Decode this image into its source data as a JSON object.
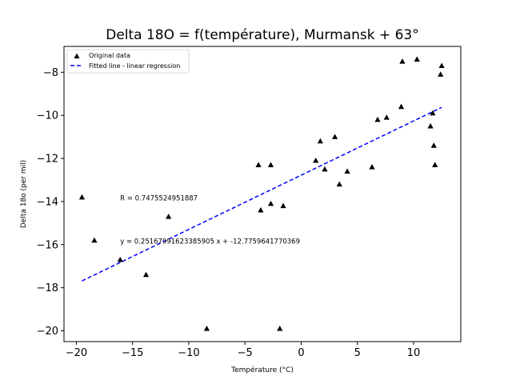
{
  "chart_data": {
    "type": "scatter",
    "title": "Delta 18O = f(température), Murmansk + 63°",
    "xlabel": "Température (°C)",
    "ylabel": "Delta 18o (per mil)",
    "xlim": [
      -21.1,
      14.2
    ],
    "ylim": [
      -20.5,
      -6.8
    ],
    "x_ticks": [
      -20,
      -15,
      -10,
      -5,
      0,
      5,
      10
    ],
    "y_ticks": [
      -20,
      -18,
      -16,
      -14,
      -12,
      -10,
      -8
    ],
    "x_tick_labels": [
      "−20",
      "−15",
      "−10",
      "−5",
      "0",
      "5",
      "10"
    ],
    "y_tick_labels": [
      "−20",
      "−18",
      "−16",
      "−14",
      "−12",
      "−10",
      "−8"
    ],
    "grid": false,
    "legend_position": "top-left",
    "series": [
      {
        "name": "Original data",
        "marker": "triangle",
        "color": "#000000",
        "points": [
          {
            "x": -19.5,
            "y": -13.8
          },
          {
            "x": -18.4,
            "y": -15.8
          },
          {
            "x": -16.1,
            "y": -16.7
          },
          {
            "x": -13.8,
            "y": -17.4
          },
          {
            "x": -11.8,
            "y": -14.7
          },
          {
            "x": -8.4,
            "y": -19.9
          },
          {
            "x": -3.8,
            "y": -12.3
          },
          {
            "x": -3.6,
            "y": -14.4
          },
          {
            "x": -2.7,
            "y": -14.1
          },
          {
            "x": -2.7,
            "y": -12.3
          },
          {
            "x": -1.9,
            "y": -19.9
          },
          {
            "x": -1.6,
            "y": -14.2
          },
          {
            "x": 1.3,
            "y": -12.1
          },
          {
            "x": 1.7,
            "y": -11.2
          },
          {
            "x": 2.1,
            "y": -12.5
          },
          {
            "x": 3.0,
            "y": -11.0
          },
          {
            "x": 3.4,
            "y": -13.2
          },
          {
            "x": 4.1,
            "y": -12.6
          },
          {
            "x": 6.3,
            "y": -12.4
          },
          {
            "x": 6.8,
            "y": -10.2
          },
          {
            "x": 7.6,
            "y": -10.1
          },
          {
            "x": 8.9,
            "y": -9.6
          },
          {
            "x": 9.0,
            "y": -7.5
          },
          {
            "x": 10.3,
            "y": -7.4
          },
          {
            "x": 11.5,
            "y": -10.5
          },
          {
            "x": 11.7,
            "y": -9.9
          },
          {
            "x": 11.8,
            "y": -11.4
          },
          {
            "x": 11.9,
            "y": -12.3
          },
          {
            "x": 12.4,
            "y": -8.1
          },
          {
            "x": 12.5,
            "y": -7.7
          }
        ]
      },
      {
        "name": "Fitted line - linear regression",
        "line_style": "dashed",
        "color": "#0000ff",
        "slope": 0.25167991623385905,
        "intercept": -12.7759641770369,
        "x_range": [
          -19.5,
          12.5
        ]
      }
    ],
    "annotations": [
      {
        "text": "R = 0.7475524951887",
        "x": -16.1,
        "y": -13.95
      },
      {
        "text": "y = 0.25167991623385905 x + -12.7759641770369",
        "x": -16.1,
        "y": -15.95
      }
    ]
  }
}
